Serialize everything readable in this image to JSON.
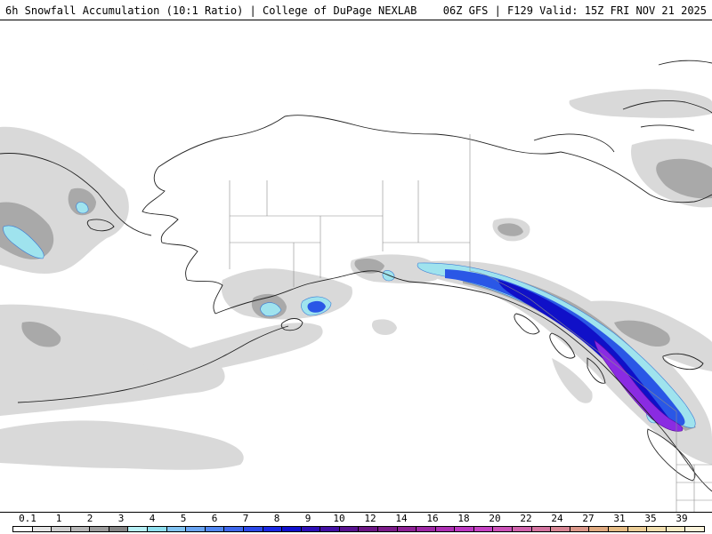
{
  "header": {
    "title_left": "6h Snowfall Accumulation (10:1 Ratio) | College of DuPage NEXLAB",
    "title_right": "06Z GFS | F129 Valid: 15Z FRI NOV 21 2025"
  },
  "colors": {
    "land_outline": "#222222",
    "border_line": "#8c8c8c",
    "light_snow": "#d9d9d9",
    "gray_snow": "#a9a9a9",
    "cyan_snow": "#9fe3ee",
    "blue_snow": "#2a57e6",
    "deep_blue": "#1010c8",
    "purple_snow": "#8a2be2"
  },
  "colorbar": {
    "labels": [
      "0.1",
      "1",
      "2",
      "3",
      "4",
      "5",
      "6",
      "7",
      "8",
      "9",
      "10",
      "12",
      "14",
      "16",
      "18",
      "20",
      "22",
      "24",
      "27",
      "31",
      "35",
      "39"
    ],
    "colors": [
      "#ffffff",
      "#e6e6e6",
      "#cfcfcf",
      "#b7b7b7",
      "#9e9e9e",
      "#868686",
      "#b7f0f5",
      "#8fe0ef",
      "#82c4f3",
      "#6aa5f3",
      "#5187f3",
      "#3f68ee",
      "#2c49ea",
      "#1a28e6",
      "#1010d0",
      "#2e0fb8",
      "#4410a5",
      "#591391",
      "#6d1685",
      "#7d1c8a",
      "#8f2296",
      "#9f28a6",
      "#ae30b4",
      "#bd38c2",
      "#c643c4",
      "#cc52b8",
      "#d063ac",
      "#d474a0",
      "#d88694",
      "#dc988a",
      "#e0aa80",
      "#e6bc84",
      "#ecce96",
      "#f2dfae",
      "#f6ebc4",
      "#faf3da"
    ]
  }
}
